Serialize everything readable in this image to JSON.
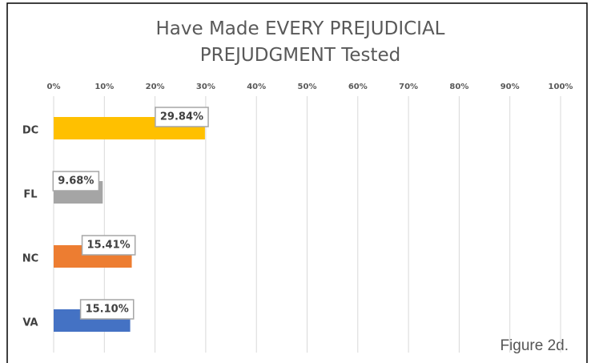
{
  "chart_data": {
    "type": "bar",
    "orientation": "horizontal",
    "title": "Have Made EVERY PREJUDICIAL PREJUDGMENT Tested",
    "categories": [
      "DC",
      "FL",
      "NC",
      "VA"
    ],
    "values": [
      29.84,
      9.68,
      15.41,
      15.1
    ],
    "value_labels": [
      "29.84%",
      "9.68%",
      "15.41%",
      "15.10%"
    ],
    "colors": [
      "#ffc000",
      "#a5a5a5",
      "#ed7d31",
      "#4472c4"
    ],
    "xlim": [
      0,
      100
    ],
    "xticks": [
      {
        "value": 0,
        "label": "0%"
      },
      {
        "value": 10,
        "label": "10%"
      },
      {
        "value": 20,
        "label": "20%"
      },
      {
        "value": 30,
        "label": "30%"
      },
      {
        "value": 40,
        "label": "40%"
      },
      {
        "value": 50,
        "label": "50%"
      },
      {
        "value": 60,
        "label": "60%"
      },
      {
        "value": 70,
        "label": "70%"
      },
      {
        "value": 80,
        "label": "80%"
      },
      {
        "value": 90,
        "label": "90%"
      },
      {
        "value": 100,
        "label": "100%"
      }
    ],
    "grid": true,
    "annotation": "Figure 2d."
  }
}
